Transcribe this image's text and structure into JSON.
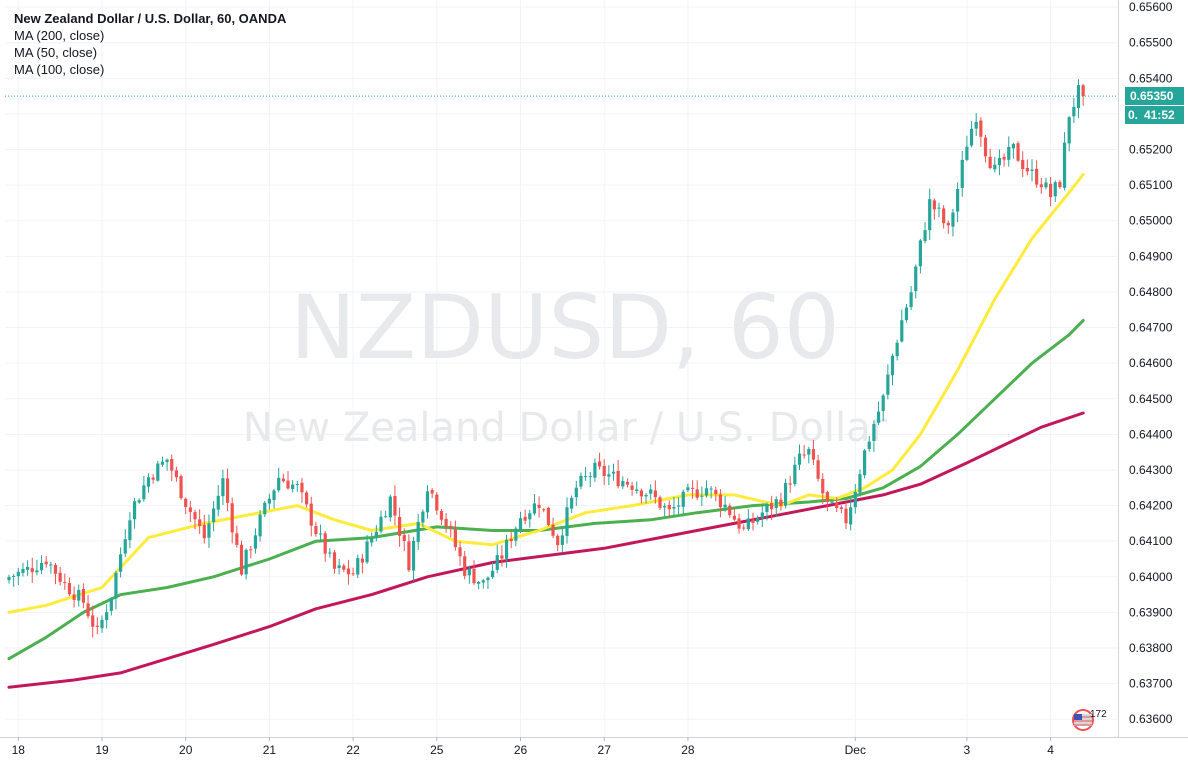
{
  "legend": {
    "symbol_title": "New Zealand Dollar / U.S. Dollar, 60, OANDA",
    "ma1": "MA (200, close)",
    "ma2": "MA (50, close)",
    "ma3": "MA (100, close)"
  },
  "watermark": {
    "line1": "NZDUSD, 60",
    "line2": "New Zealand Dollar / U.S. Dollar"
  },
  "price_badge": {
    "price": "0.65350",
    "countdown": "41:52",
    "hidden_char": "0."
  },
  "logo_badge": {
    "count": "172"
  },
  "colors": {
    "up": "#26a69a",
    "down": "#ef5350",
    "ma50": "#ffeb3b",
    "ma100": "#4caf50",
    "ma200": "#c2185b",
    "price_line": "#26a69a",
    "grid": "#f0f3fa",
    "axis_text": "#131722"
  },
  "chart_data": {
    "type": "candlestick",
    "title": "New Zealand Dollar / U.S. Dollar, 60, OANDA",
    "ylim": [
      0.6355,
      0.6562
    ],
    "y_ticks": [
      "0.63600",
      "0.63700",
      "0.63800",
      "0.63900",
      "0.64000",
      "0.64100",
      "0.64200",
      "0.64300",
      "0.64400",
      "0.64500",
      "0.64600",
      "0.64700",
      "0.64800",
      "0.64900",
      "0.65000",
      "0.65100",
      "0.65200",
      "0.65300",
      "0.65400",
      "0.65500",
      "0.65600"
    ],
    "x_ticks": [
      "18",
      "19",
      "20",
      "21",
      "22",
      "25",
      "26",
      "27",
      "28",
      "Dec",
      "3",
      "4"
    ],
    "x_tick_index": [
      2,
      20,
      38,
      56,
      74,
      92,
      110,
      128,
      146,
      182,
      206,
      224
    ],
    "last_price": 0.6535,
    "anchors": [
      [
        0,
        0.64
      ],
      [
        4,
        0.6402
      ],
      [
        8,
        0.6405
      ],
      [
        12,
        0.6398
      ],
      [
        16,
        0.6393
      ],
      [
        19,
        0.6384
      ],
      [
        22,
        0.6395
      ],
      [
        26,
        0.6418
      ],
      [
        30,
        0.6428
      ],
      [
        34,
        0.6433
      ],
      [
        38,
        0.6421
      ],
      [
        42,
        0.6411
      ],
      [
        46,
        0.6427
      ],
      [
        50,
        0.6402
      ],
      [
        54,
        0.6416
      ],
      [
        58,
        0.6428
      ],
      [
        62,
        0.6425
      ],
      [
        66,
        0.6413
      ],
      [
        70,
        0.6402
      ],
      [
        74,
        0.6401
      ],
      [
        78,
        0.6411
      ],
      [
        82,
        0.6422
      ],
      [
        86,
        0.6404
      ],
      [
        90,
        0.6426
      ],
      [
        94,
        0.6415
      ],
      [
        98,
        0.6402
      ],
      [
        102,
        0.6398
      ],
      [
        106,
        0.6406
      ],
      [
        110,
        0.6417
      ],
      [
        114,
        0.6421
      ],
      [
        118,
        0.641
      ],
      [
        122,
        0.6425
      ],
      [
        126,
        0.643
      ],
      [
        130,
        0.6428
      ],
      [
        134,
        0.6426
      ],
      [
        138,
        0.6423
      ],
      [
        142,
        0.6418
      ],
      [
        146,
        0.6423
      ],
      [
        150,
        0.6425
      ],
      [
        154,
        0.642
      ],
      [
        158,
        0.6413
      ],
      [
        162,
        0.6418
      ],
      [
        166,
        0.6422
      ],
      [
        170,
        0.6433
      ],
      [
        172,
        0.6435
      ],
      [
        174,
        0.6427
      ],
      [
        176,
        0.642
      ],
      [
        178,
        0.6418
      ],
      [
        180,
        0.6416
      ],
      [
        182,
        0.6425
      ],
      [
        184,
        0.6435
      ],
      [
        186,
        0.6443
      ],
      [
        188,
        0.645
      ],
      [
        190,
        0.6462
      ],
      [
        192,
        0.6472
      ],
      [
        194,
        0.648
      ],
      [
        196,
        0.6493
      ],
      [
        198,
        0.6505
      ],
      [
        200,
        0.6502
      ],
      [
        202,
        0.6497
      ],
      [
        204,
        0.6509
      ],
      [
        206,
        0.6522
      ],
      [
        208,
        0.653
      ],
      [
        210,
        0.652
      ],
      [
        212,
        0.6514
      ],
      [
        214,
        0.6517
      ],
      [
        216,
        0.652
      ],
      [
        218,
        0.6516
      ],
      [
        220,
        0.6513
      ],
      [
        222,
        0.6511
      ],
      [
        224,
        0.6507
      ],
      [
        226,
        0.6511
      ],
      [
        228,
        0.653
      ],
      [
        230,
        0.6536
      ],
      [
        231,
        0.6535
      ]
    ],
    "ma50": [
      [
        0,
        0.639
      ],
      [
        8,
        0.6392
      ],
      [
        20,
        0.6397
      ],
      [
        30,
        0.6411
      ],
      [
        42,
        0.6415
      ],
      [
        54,
        0.6418
      ],
      [
        62,
        0.642
      ],
      [
        70,
        0.6416
      ],
      [
        78,
        0.6413
      ],
      [
        88,
        0.6415
      ],
      [
        96,
        0.641
      ],
      [
        104,
        0.6409
      ],
      [
        114,
        0.6413
      ],
      [
        124,
        0.6418
      ],
      [
        134,
        0.642
      ],
      [
        146,
        0.6423
      ],
      [
        156,
        0.6423
      ],
      [
        166,
        0.642
      ],
      [
        172,
        0.6423
      ],
      [
        178,
        0.6422
      ],
      [
        184,
        0.6425
      ],
      [
        190,
        0.643
      ],
      [
        196,
        0.644
      ],
      [
        204,
        0.6458
      ],
      [
        212,
        0.6478
      ],
      [
        220,
        0.6495
      ],
      [
        228,
        0.6508
      ],
      [
        231,
        0.6513
      ]
    ],
    "ma100": [
      [
        0,
        0.6377
      ],
      [
        8,
        0.6383
      ],
      [
        16,
        0.639
      ],
      [
        24,
        0.6395
      ],
      [
        34,
        0.6397
      ],
      [
        44,
        0.64
      ],
      [
        56,
        0.6405
      ],
      [
        66,
        0.641
      ],
      [
        78,
        0.6411
      ],
      [
        92,
        0.6414
      ],
      [
        104,
        0.6413
      ],
      [
        114,
        0.6413
      ],
      [
        126,
        0.6415
      ],
      [
        138,
        0.6416
      ],
      [
        148,
        0.6418
      ],
      [
        160,
        0.642
      ],
      [
        172,
        0.6421
      ],
      [
        180,
        0.6422
      ],
      [
        188,
        0.6425
      ],
      [
        196,
        0.6431
      ],
      [
        204,
        0.644
      ],
      [
        212,
        0.645
      ],
      [
        220,
        0.646
      ],
      [
        228,
        0.6468
      ],
      [
        231,
        0.6472
      ]
    ],
    "ma200": [
      [
        0,
        0.6369
      ],
      [
        14,
        0.6371
      ],
      [
        24,
        0.6373
      ],
      [
        34,
        0.6377
      ],
      [
        44,
        0.6381
      ],
      [
        56,
        0.6386
      ],
      [
        66,
        0.6391
      ],
      [
        78,
        0.6395
      ],
      [
        90,
        0.64
      ],
      [
        104,
        0.6404
      ],
      [
        116,
        0.6406
      ],
      [
        128,
        0.6408
      ],
      [
        140,
        0.6411
      ],
      [
        152,
        0.6414
      ],
      [
        164,
        0.6417
      ],
      [
        176,
        0.642
      ],
      [
        188,
        0.6423
      ],
      [
        196,
        0.6426
      ],
      [
        206,
        0.6432
      ],
      [
        214,
        0.6437
      ],
      [
        222,
        0.6442
      ],
      [
        231,
        0.6446
      ]
    ]
  }
}
